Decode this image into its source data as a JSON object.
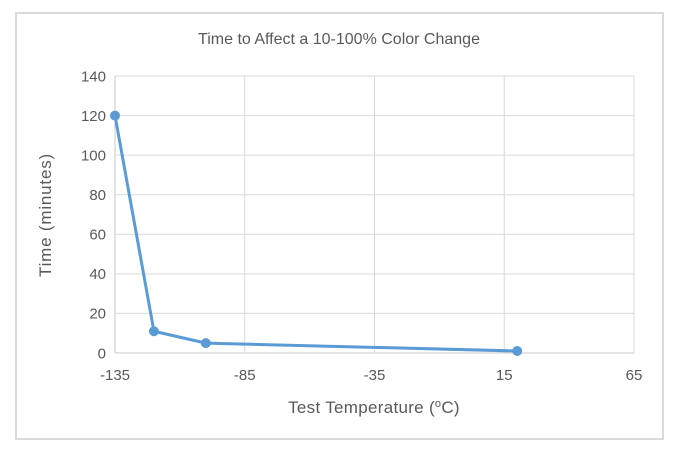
{
  "chart_data": {
    "type": "line",
    "title": "Time to Affect a 10-100% Color Change",
    "ylabel": "Time (minutes)",
    "xlabel": "Test Temperature (°C)",
    "xlabel_prefix": "Test Temperature (",
    "xlabel_sup": "o",
    "xlabel_suffix": "C)",
    "x": [
      -135,
      -120,
      -100,
      20
    ],
    "y": [
      120,
      11,
      5,
      1
    ],
    "x_ticks": [
      -135,
      -85,
      -35,
      15,
      65
    ],
    "y_ticks": [
      0,
      20,
      40,
      60,
      80,
      100,
      120,
      140
    ],
    "xlim": [
      -135,
      65
    ],
    "ylim": [
      0,
      140
    ],
    "grid": true,
    "legend": "none",
    "series_color": "#5b9bd5",
    "grid_color": "#d9d9d9",
    "axis_line_color": "#c9c9c9",
    "text_color": "#595959",
    "marker_radius": 5,
    "line_width": 3
  }
}
